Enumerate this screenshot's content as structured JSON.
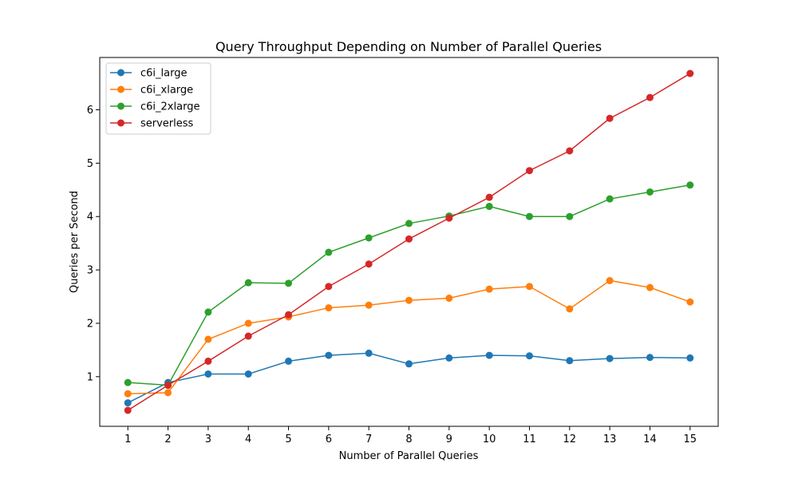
{
  "chart_data": {
    "type": "line",
    "title": "Query Throughput Depending on Number of Parallel Queries",
    "xlabel": "Number of Parallel Queries",
    "ylabel": "Queries per Second",
    "x": [
      1,
      2,
      3,
      4,
      5,
      6,
      7,
      8,
      9,
      10,
      11,
      12,
      13,
      14,
      15
    ],
    "x_ticks": [
      "1",
      "2",
      "3",
      "4",
      "5",
      "6",
      "7",
      "8",
      "9",
      "10",
      "11",
      "12",
      "13",
      "14",
      "15"
    ],
    "y_ticks": [
      "1",
      "2",
      "3",
      "4",
      "5",
      "6"
    ],
    "xlim": [
      0.3,
      15.7
    ],
    "ylim": [
      0.07,
      6.98
    ],
    "grid": false,
    "legend_position": "top-left",
    "series": [
      {
        "name": "c6i_large",
        "color": "#1f77b4",
        "values": [
          0.51,
          0.89,
          1.05,
          1.05,
          1.29,
          1.4,
          1.44,
          1.24,
          1.35,
          1.4,
          1.39,
          1.3,
          1.34,
          1.36,
          1.35
        ]
      },
      {
        "name": "c6i_xlarge",
        "color": "#ff7f0e",
        "values": [
          0.68,
          0.7,
          1.7,
          2.0,
          2.12,
          2.29,
          2.34,
          2.43,
          2.47,
          2.64,
          2.69,
          2.27,
          2.8,
          2.67,
          2.4
        ]
      },
      {
        "name": "c6i_2xlarge",
        "color": "#2ca02c",
        "values": [
          0.89,
          0.84,
          2.21,
          2.76,
          2.75,
          3.33,
          3.6,
          3.87,
          4.01,
          4.19,
          4.0,
          4.0,
          4.33,
          4.46,
          4.59
        ]
      },
      {
        "name": "serverless",
        "color": "#d62728",
        "values": [
          0.37,
          0.84,
          1.29,
          1.76,
          2.16,
          2.69,
          3.11,
          3.58,
          3.97,
          4.36,
          4.86,
          5.23,
          5.84,
          6.23,
          6.68
        ]
      }
    ]
  }
}
